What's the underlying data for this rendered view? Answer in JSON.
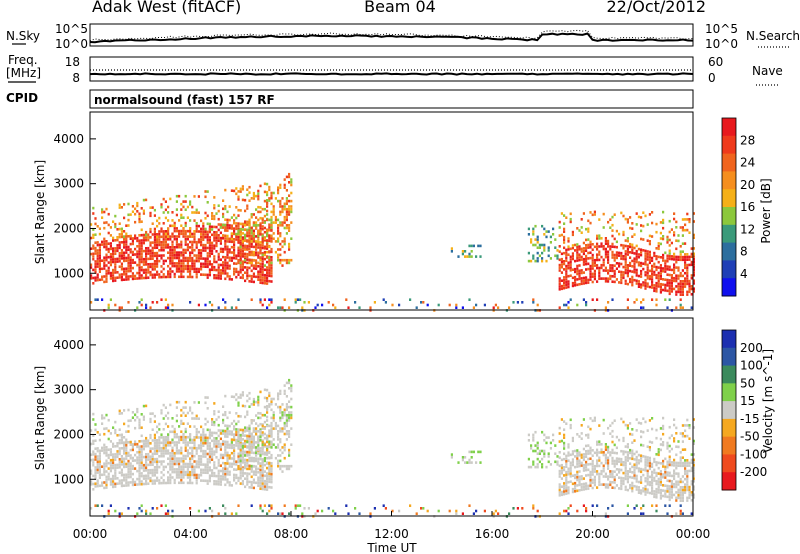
{
  "header": {
    "station": "Adak West (fitACF)",
    "beam": "Beam 04",
    "date": "22/Oct/2012"
  },
  "noise_panel": {
    "left_label": "N.Sky",
    "right_label": "N.Search",
    "tick_top": "10^5",
    "tick_bottom": "10^0"
  },
  "freq_panel": {
    "left_label_1": "Freq.",
    "left_label_2": "[MHz]",
    "right_label": "Nave",
    "left_ticks": [
      "18",
      "8"
    ],
    "right_ticks": [
      "60",
      "0"
    ]
  },
  "cpid": {
    "label": "CPID",
    "value": "normalsound (fast) 157 RF"
  },
  "chart_data": [
    {
      "type": "heatmap",
      "name": "power",
      "ylabel": "Slant Range [km]",
      "ylim": [
        180,
        4600
      ],
      "yticks": [
        "1000",
        "2000",
        "3000",
        "4000"
      ],
      "colorbar": {
        "label": "Power [dB]",
        "ticks": [
          "28",
          "24",
          "20",
          "16",
          "12",
          "8",
          "4"
        ],
        "colors": [
          "#e8191e",
          "#ef3a1c",
          "#f0641e",
          "#f58e1e",
          "#f5b018",
          "#8cc83c",
          "#3a9a7a",
          "#2c6e9e",
          "#1f3fb6",
          "#1010ee"
        ]
      }
    },
    {
      "type": "heatmap",
      "name": "velocity",
      "ylabel": "Slant Range [km]",
      "ylim": [
        180,
        4600
      ],
      "yticks": [
        "1000",
        "2000",
        "3000",
        "4000"
      ],
      "colorbar": {
        "label": "Velocity [m s^-1]",
        "ticks": [
          "200",
          "100",
          "50",
          "15",
          "-15",
          "-50",
          "-100",
          "-200"
        ],
        "colors": [
          "#1c2fb0",
          "#2c56a4",
          "#3b8a5c",
          "#7fd04a",
          "#cccbc6",
          "#f5a820",
          "#f07a20",
          "#ef4a1e",
          "#e8191e"
        ]
      }
    }
  ],
  "xaxis": {
    "label": "Time UT",
    "ticks": [
      "00:00",
      "04:00",
      "08:00",
      "12:00",
      "16:00",
      "20:00",
      "00:00"
    ]
  }
}
